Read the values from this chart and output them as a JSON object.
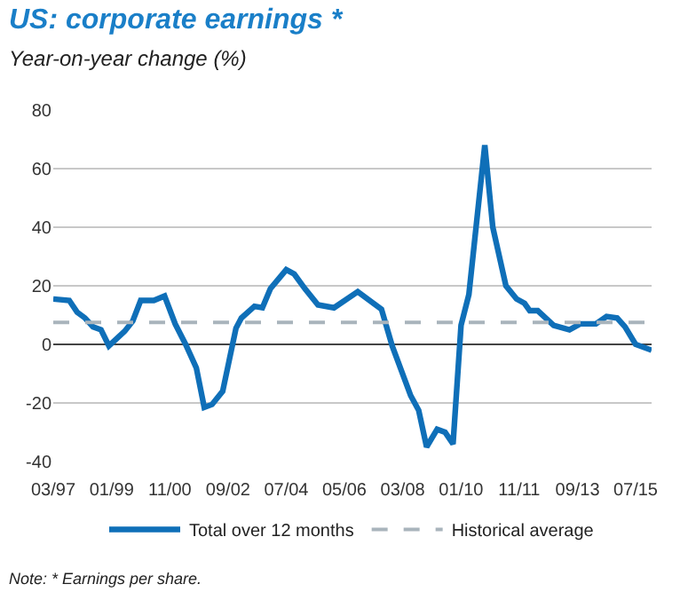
{
  "chart_data": {
    "type": "line",
    "title": "US: corporate earnings *",
    "subtitle": "Year-on-year change (%)",
    "x": [
      "1997-03",
      "1997-09",
      "1997-12",
      "1998-03",
      "1998-06",
      "1998-09",
      "1998-12",
      "1999-06",
      "1999-09",
      "1999-12",
      "2000-05",
      "2000-09",
      "2001-01",
      "2001-05",
      "2001-09",
      "2001-12",
      "2002-03",
      "2002-07",
      "2002-12",
      "2003-02",
      "2003-07",
      "2003-10",
      "2004-01",
      "2004-07",
      "2004-10",
      "2005-02",
      "2005-07",
      "2006-01",
      "2006-10",
      "2007-07",
      "2007-11",
      "2008-06",
      "2008-09",
      "2008-12",
      "2009-04",
      "2009-07",
      "2009-10",
      "2010-01",
      "2010-04",
      "2010-10",
      "2011-01",
      "2011-06",
      "2011-10",
      "2012-01",
      "2012-03",
      "2012-06",
      "2012-12",
      "2013-06",
      "2013-10",
      "2014-04",
      "2014-08",
      "2014-12",
      "2015-03",
      "2015-07",
      "2016-01"
    ],
    "series": [
      {
        "name": "Total over 12 months",
        "color": "#0f6fb8",
        "values": [
          15.5,
          15,
          11,
          9,
          6,
          5,
          -0.5,
          4.5,
          8,
          15,
          15,
          16.5,
          7,
          0,
          -8,
          -21.5,
          -20.5,
          -16,
          5.5,
          9,
          13,
          12.5,
          19,
          25.5,
          24,
          19,
          13.5,
          12.5,
          18,
          12,
          -0.5,
          -17.5,
          -22.5,
          -35,
          -29,
          -30,
          -34,
          6.5,
          17,
          68,
          40,
          20,
          15.5,
          14,
          11.5,
          11.5,
          6.5,
          5,
          7,
          7,
          9.5,
          9,
          6,
          0,
          -2
        ]
      }
    ],
    "ref_lines": [
      {
        "axis": "y",
        "value": 7.5,
        "label": "Historical average",
        "color": "#a9b4bc",
        "line_style": "dashed"
      }
    ],
    "xlim": [
      "1997-03",
      "2016-01"
    ],
    "xticks": [
      {
        "value": "1997-03",
        "label": "03/97"
      },
      {
        "value": "1999-01",
        "label": "01/99"
      },
      {
        "value": "2000-11",
        "label": "11/00"
      },
      {
        "value": "2002-09",
        "label": "09/02"
      },
      {
        "value": "2004-07",
        "label": "07/04"
      },
      {
        "value": "2006-05",
        "label": "05/06"
      },
      {
        "value": "2008-03",
        "label": "03/08"
      },
      {
        "value": "2010-01",
        "label": "01/10"
      },
      {
        "value": "2011-11",
        "label": "11/11"
      },
      {
        "value": "2013-09",
        "label": "09/13"
      },
      {
        "value": "2015-07",
        "label": "07/15"
      }
    ],
    "ylim": [
      -40,
      80
    ],
    "yticks": [
      -40,
      -20,
      0,
      20,
      40,
      60,
      80
    ],
    "grid": "y",
    "legend": "bottom",
    "line_style": "solid",
    "marker": "none",
    "annotations": [
      "Note: * Earnings per share."
    ]
  }
}
